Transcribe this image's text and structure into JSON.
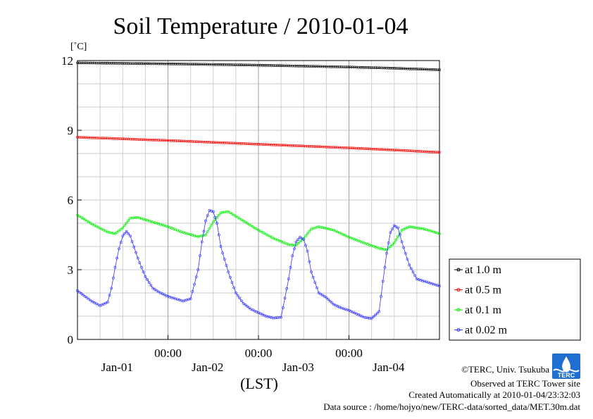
{
  "chart_data": {
    "type": "line",
    "title": "Soil Temperature / 2010-01-04",
    "ylabel": "[˚C]",
    "xlabel": "(LST)",
    "ylim": [
      0,
      12
    ],
    "yticks": [
      0,
      3,
      6,
      9,
      12
    ],
    "xlim": [
      0,
      96
    ],
    "x_major_ticks": [
      24,
      48,
      72
    ],
    "x_major_labels": [
      "00:00",
      "00:00",
      "00:00"
    ],
    "x_day_label_positions": [
      12,
      36,
      60,
      84
    ],
    "x_day_labels": [
      "Jan-01",
      "Jan-02",
      "Jan-03",
      "Jan-04"
    ],
    "grid": true,
    "legend_position": "right",
    "series": [
      {
        "name": "at 1.0 m",
        "color": "#000000",
        "x": [
          0,
          12,
          24,
          36,
          48,
          60,
          72,
          84,
          96
        ],
        "values": [
          11.9,
          11.88,
          11.86,
          11.83,
          11.8,
          11.76,
          11.72,
          11.67,
          11.6
        ]
      },
      {
        "name": "at 0.5 m",
        "color": "#ff0000",
        "x": [
          0,
          12,
          24,
          36,
          48,
          60,
          72,
          84,
          96
        ],
        "values": [
          8.7,
          8.63,
          8.56,
          8.48,
          8.4,
          8.32,
          8.24,
          8.15,
          8.05
        ]
      },
      {
        "name": "at 0.1 m",
        "color": "#00ee00",
        "x": [
          0,
          4,
          8,
          10,
          12,
          14,
          16,
          20,
          24,
          28,
          32,
          34,
          36,
          38,
          40,
          44,
          48,
          52,
          56,
          58,
          60,
          62,
          64,
          68,
          72,
          76,
          80,
          82,
          84,
          86,
          88,
          92,
          96
        ],
        "values": [
          5.35,
          4.95,
          4.62,
          4.55,
          4.8,
          5.22,
          5.25,
          5.05,
          4.85,
          4.6,
          4.42,
          4.5,
          5.05,
          5.45,
          5.5,
          5.1,
          4.7,
          4.35,
          4.08,
          4.05,
          4.35,
          4.75,
          4.85,
          4.7,
          4.4,
          4.15,
          3.92,
          3.85,
          4.15,
          4.7,
          4.85,
          4.75,
          4.55
        ]
      },
      {
        "name": "at 0.02 m",
        "color": "#3333ff",
        "x": [
          0,
          2,
          4,
          6,
          8,
          9,
          10,
          11,
          12,
          13,
          14,
          16,
          18,
          20,
          22,
          24,
          26,
          28,
          30,
          32,
          33,
          34,
          35,
          36,
          37,
          38,
          40,
          42,
          44,
          46,
          48,
          50,
          52,
          54,
          56,
          57,
          58,
          59,
          60,
          61,
          62,
          64,
          66,
          68,
          70,
          72,
          74,
          76,
          78,
          80,
          81,
          82,
          83,
          84,
          85,
          86,
          88,
          90,
          92,
          94,
          96
        ],
        "values": [
          2.1,
          1.85,
          1.62,
          1.45,
          1.6,
          2.2,
          3.1,
          3.9,
          4.45,
          4.65,
          4.45,
          3.5,
          2.7,
          2.2,
          2.0,
          1.85,
          1.75,
          1.65,
          1.75,
          3.0,
          4.2,
          5.1,
          5.55,
          5.5,
          5.0,
          4.0,
          2.9,
          2.0,
          1.55,
          1.3,
          1.15,
          1.0,
          0.92,
          0.95,
          2.6,
          3.6,
          4.2,
          4.4,
          4.3,
          3.8,
          2.9,
          2.0,
          1.8,
          1.5,
          1.35,
          1.25,
          1.1,
          0.95,
          0.9,
          1.2,
          2.5,
          3.7,
          4.6,
          4.9,
          4.8,
          4.2,
          3.2,
          2.6,
          2.5,
          2.4,
          2.3
        ]
      }
    ]
  },
  "footer": {
    "copyright": "©TERC, Univ. Tsukuba",
    "observed": "Observed at TERC Tower site",
    "created": "Created Automatically at 2010-01-04/23:32:03",
    "source": "Data source : /home/hojyo/new/TERC-data/sorted_data/MET.30m.dat"
  },
  "logo": {
    "text": "TERC"
  }
}
